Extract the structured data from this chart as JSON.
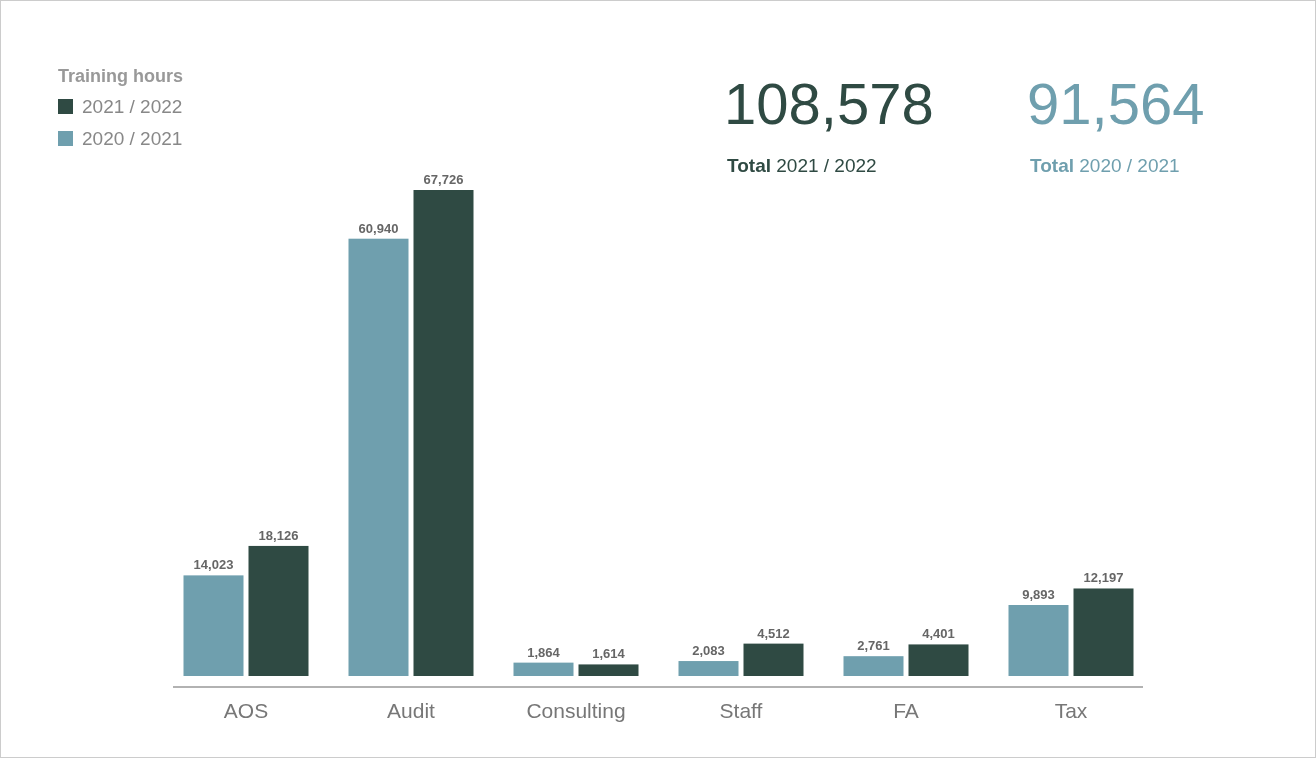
{
  "chart_data": {
    "type": "bar",
    "legend_title": "Training hours",
    "categories": [
      "AOS",
      "Audit",
      "Consulting",
      "Staff",
      "FA",
      "Tax"
    ],
    "series": [
      {
        "name": "2020 / 2021",
        "color": "#6f9fae",
        "values": [
          14023,
          60940,
          1864,
          2083,
          2761,
          9893
        ],
        "value_labels": [
          "14,023",
          "60,940",
          "1,864",
          "2,083",
          "2,761",
          "9,893"
        ]
      },
      {
        "name": "2021 / 2022",
        "color": "#2f4a43",
        "values": [
          18126,
          67726,
          1614,
          4512,
          4401,
          12197
        ],
        "value_labels": [
          "18,126",
          "67,726",
          "1,614",
          "4,512",
          "4,401",
          "12,197"
        ]
      }
    ],
    "annotations": [
      "108,578",
      "Total 2021 / 2022",
      "91,564",
      "Total 2020 / 2021"
    ],
    "legend": "top left"
  }
}
